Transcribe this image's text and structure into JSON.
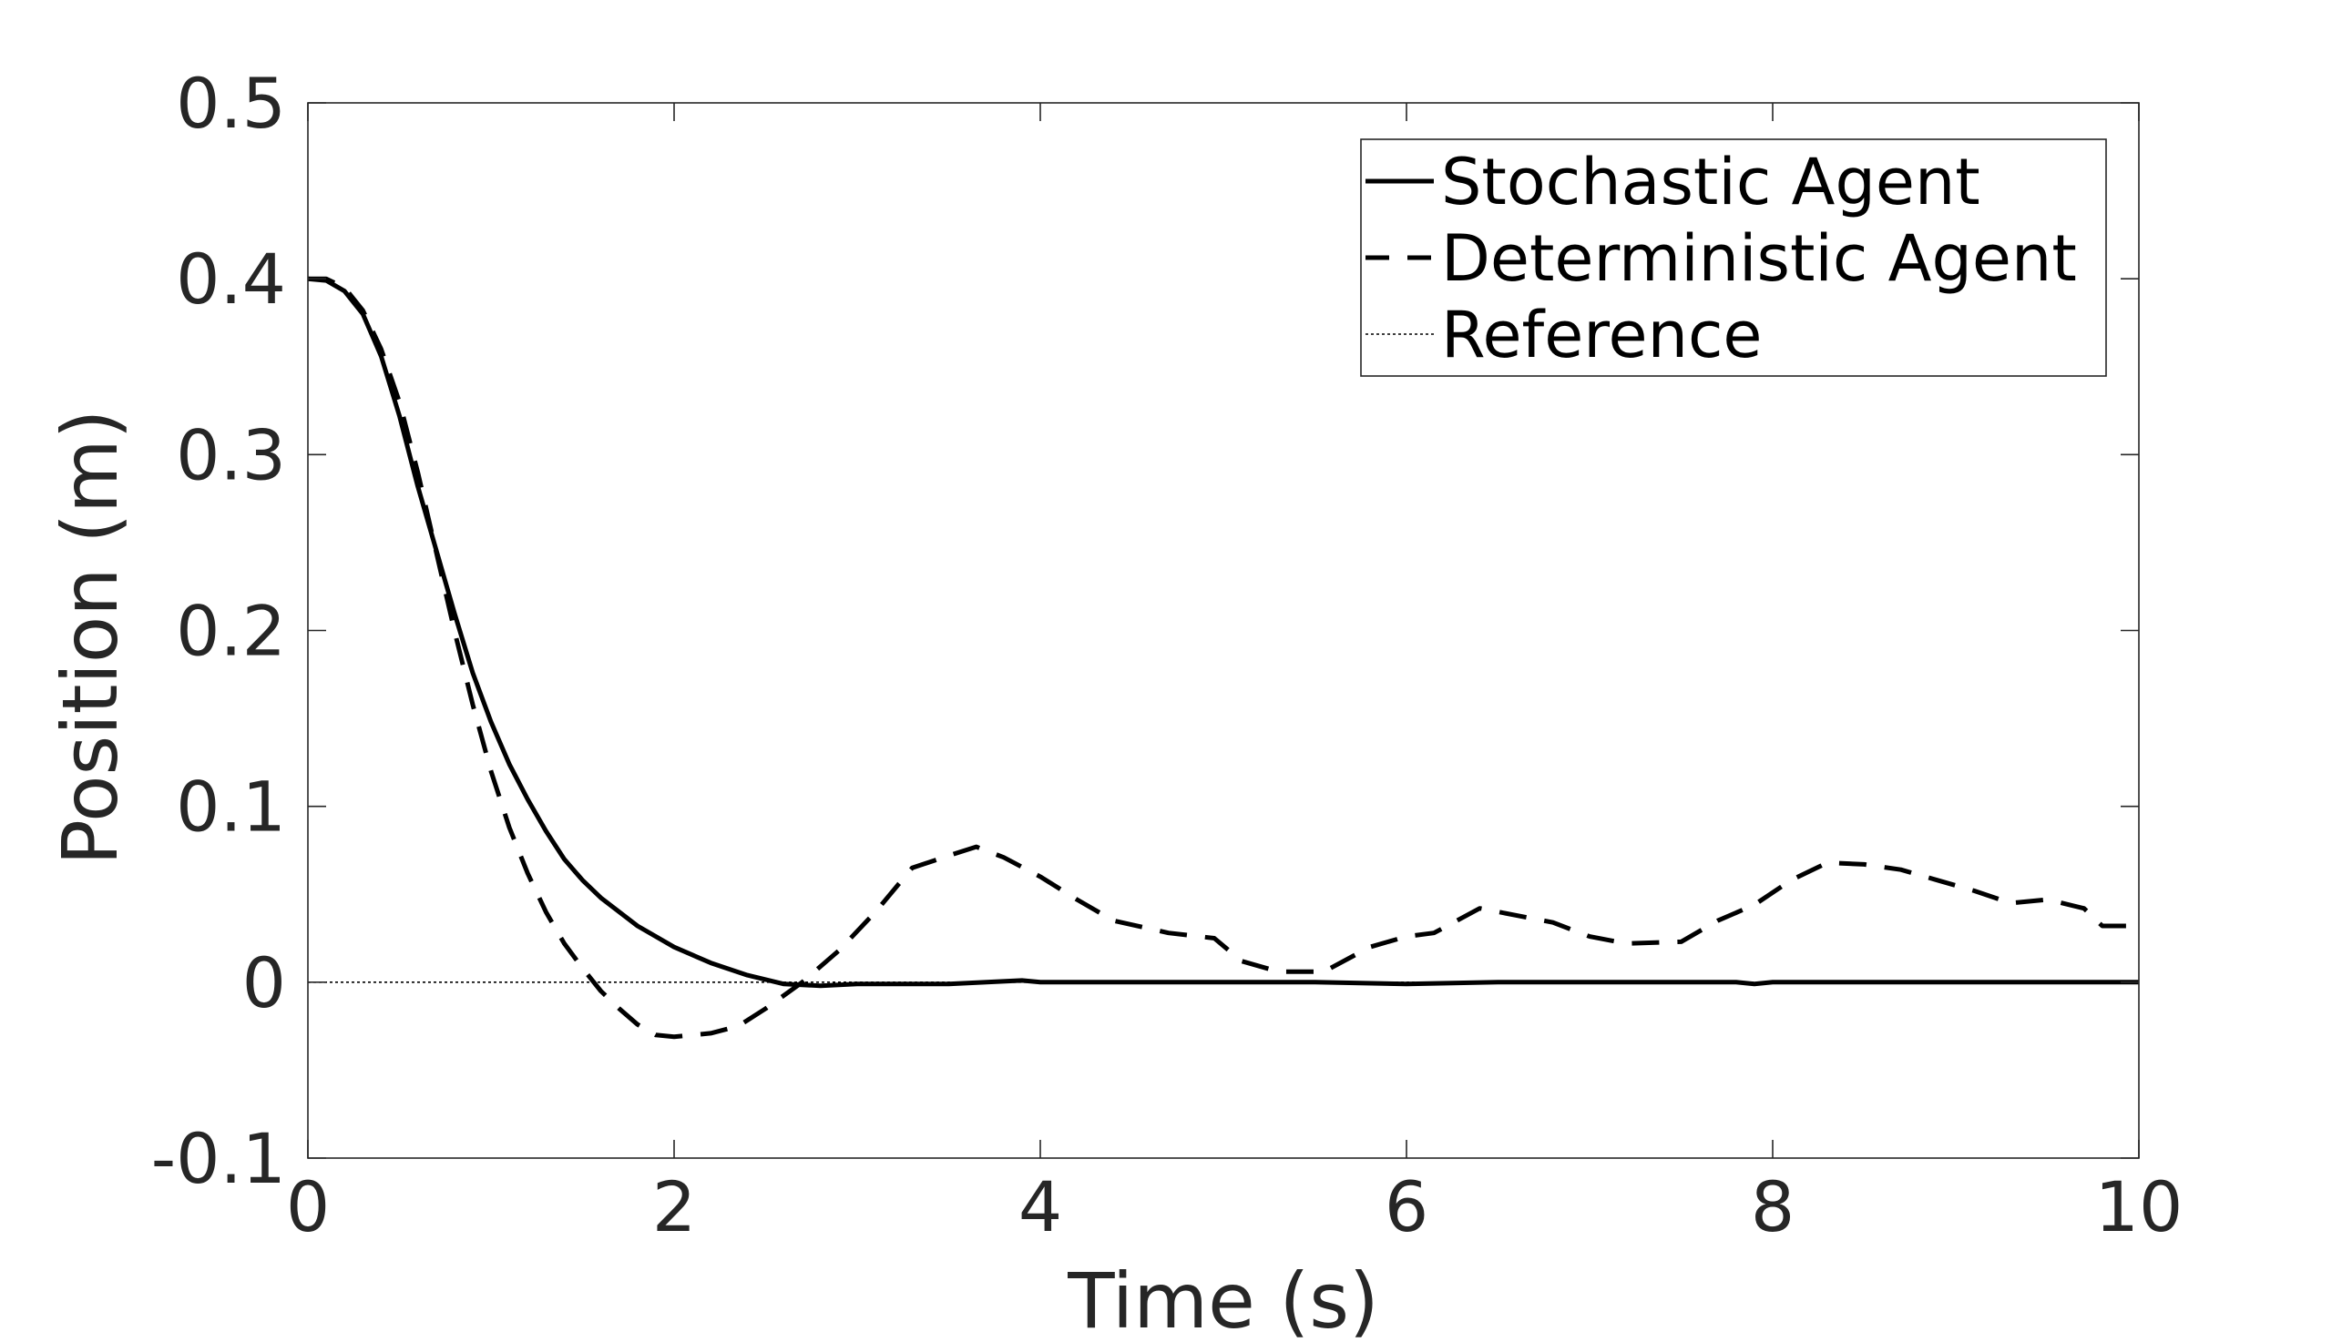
{
  "chart_data": {
    "type": "line",
    "title": "",
    "xlabel": "Time (s)",
    "ylabel": "Position (m)",
    "xlim": [
      0,
      10
    ],
    "ylim": [
      -0.1,
      0.5
    ],
    "xticks": [
      0,
      2,
      4,
      6,
      8,
      10
    ],
    "yticks": [
      -0.1,
      0,
      0.1,
      0.2,
      0.3,
      0.4,
      0.5
    ],
    "xtick_labels": [
      "0",
      "2",
      "4",
      "6",
      "8",
      "10"
    ],
    "ytick_labels": [
      "-0.1",
      "0",
      "0.1",
      "0.2",
      "0.3",
      "0.4",
      "0.5"
    ],
    "grid": false,
    "legend_position": "top-right",
    "series": [
      {
        "name": "Stochastic Agent",
        "style": "solid",
        "color": "#000000",
        "x": [
          0,
          0.1,
          0.2,
          0.3,
          0.4,
          0.5,
          0.6,
          0.7,
          0.8,
          0.9,
          1.0,
          1.1,
          1.2,
          1.3,
          1.4,
          1.5,
          1.6,
          1.8,
          2.0,
          2.2,
          2.4,
          2.6,
          2.8,
          3.0,
          3.5,
          3.9,
          4.0,
          4.5,
          5.0,
          5.5,
          6.0,
          6.5,
          7.0,
          7.5,
          7.8,
          7.9,
          8.0,
          8.5,
          9.0,
          9.5,
          10.0
        ],
        "y": [
          0.4,
          0.399,
          0.393,
          0.38,
          0.356,
          0.322,
          0.282,
          0.246,
          0.21,
          0.176,
          0.148,
          0.124,
          0.104,
          0.086,
          0.07,
          0.058,
          0.048,
          0.032,
          0.02,
          0.011,
          0.004,
          -0.001,
          -0.002,
          -0.001,
          -0.001,
          0.001,
          0.0,
          0.0,
          0.0,
          0.0,
          -0.001,
          0.0,
          0.0,
          0.0,
          0.0,
          -0.001,
          0.0,
          0.0,
          0.0,
          0.0,
          0.0
        ]
      },
      {
        "name": "Deterministic Agent",
        "style": "dashed",
        "color": "#000000",
        "x": [
          0,
          0.1,
          0.2,
          0.3,
          0.4,
          0.5,
          0.6,
          0.7,
          0.8,
          0.9,
          1.0,
          1.1,
          1.2,
          1.3,
          1.4,
          1.5,
          1.6,
          1.7,
          1.8,
          1.9,
          2.0,
          2.1,
          2.2,
          2.35,
          2.5,
          2.7,
          2.9,
          3.1,
          3.3,
          3.5,
          3.65,
          3.8,
          4.0,
          4.2,
          4.4,
          4.7,
          4.95,
          5.1,
          5.3,
          5.55,
          5.8,
          6.0,
          6.15,
          6.4,
          6.6,
          6.8,
          7.0,
          7.2,
          7.5,
          7.7,
          7.9,
          8.1,
          8.3,
          8.5,
          8.7,
          8.9,
          9.1,
          9.3,
          9.5,
          9.7,
          9.8,
          10.0
        ],
        "y": [
          0.4,
          0.4,
          0.395,
          0.382,
          0.36,
          0.33,
          0.29,
          0.245,
          0.2,
          0.158,
          0.12,
          0.088,
          0.062,
          0.04,
          0.022,
          0.008,
          -0.005,
          -0.015,
          -0.024,
          -0.03,
          -0.031,
          -0.03,
          -0.029,
          -0.025,
          -0.015,
          0.0,
          0.018,
          0.04,
          0.065,
          0.072,
          0.077,
          0.071,
          0.06,
          0.047,
          0.035,
          0.028,
          0.025,
          0.012,
          0.006,
          0.006,
          0.02,
          0.026,
          0.028,
          0.042,
          0.038,
          0.034,
          0.026,
          0.022,
          0.023,
          0.035,
          0.044,
          0.058,
          0.068,
          0.067,
          0.064,
          0.058,
          0.052,
          0.045,
          0.047,
          0.042,
          0.032,
          0.032
        ]
      },
      {
        "name": "Reference",
        "style": "dotted",
        "color": "#000000",
        "x": [
          0,
          10
        ],
        "y": [
          0,
          0
        ]
      }
    ]
  }
}
